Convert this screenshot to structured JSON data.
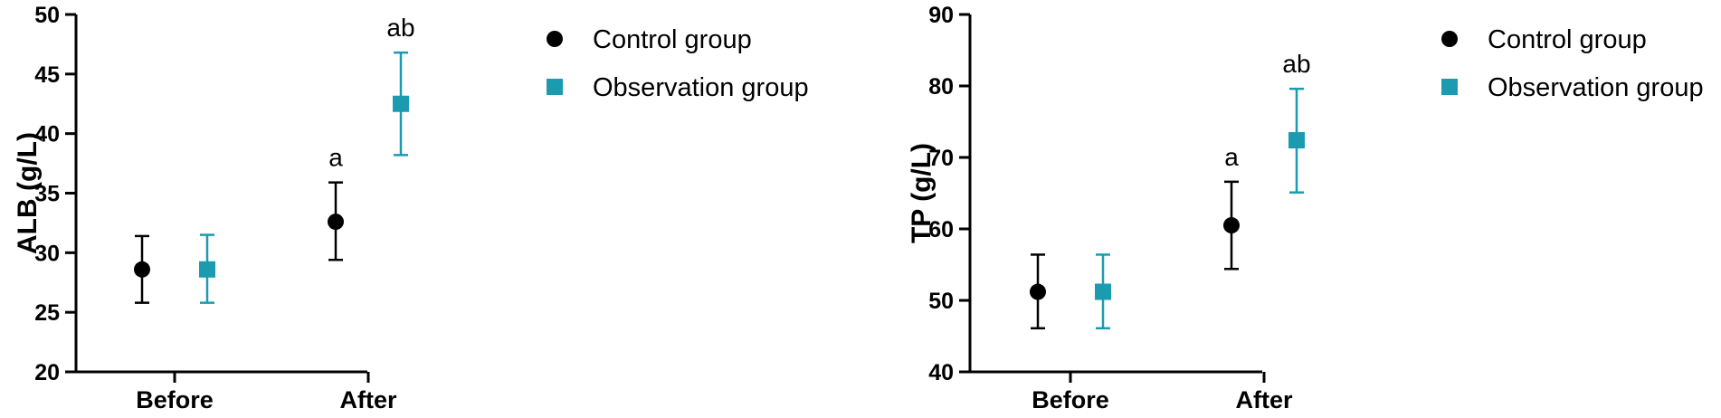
{
  "chart_data": [
    {
      "type": "scatter",
      "ylabel": "ALB (g/L)",
      "categories": [
        "Before",
        "After"
      ],
      "ylim": [
        20,
        50
      ],
      "yticks": [
        20,
        25,
        30,
        35,
        40,
        45,
        50
      ],
      "series": [
        {
          "name": "Control group",
          "marker": "circle",
          "color": "#000000",
          "values": [
            28.6,
            32.6
          ],
          "err_low": [
            25.8,
            29.4
          ],
          "err_high": [
            31.4,
            35.9
          ]
        },
        {
          "name": "Observation group",
          "marker": "square",
          "color": "#1a9bb0",
          "values": [
            28.6,
            42.5
          ],
          "err_low": [
            25.8,
            38.2
          ],
          "err_high": [
            31.5,
            46.8
          ]
        }
      ],
      "annotations": [
        {
          "category": "After",
          "series": "Control group",
          "text": "a"
        },
        {
          "category": "After",
          "series": "Observation group",
          "text": "ab"
        }
      ],
      "legend": "top-right",
      "grid": false
    },
    {
      "type": "scatter",
      "ylabel": "TP (g/L)",
      "categories": [
        "Before",
        "After"
      ],
      "ylim": [
        40,
        90
      ],
      "yticks": [
        40,
        50,
        60,
        70,
        80,
        90
      ],
      "series": [
        {
          "name": "Control group",
          "marker": "circle",
          "color": "#000000",
          "values": [
            51.2,
            60.5
          ],
          "err_low": [
            46.1,
            54.4
          ],
          "err_high": [
            56.4,
            66.6
          ]
        },
        {
          "name": "Observation group",
          "marker": "square",
          "color": "#1a9bb0",
          "values": [
            51.2,
            72.4
          ],
          "err_low": [
            46.1,
            65.1
          ],
          "err_high": [
            56.4,
            79.6
          ]
        }
      ],
      "annotations": [
        {
          "category": "After",
          "series": "Control group",
          "text": "a"
        },
        {
          "category": "After",
          "series": "Observation group",
          "text": "ab"
        }
      ],
      "legend": "top-right",
      "grid": false
    }
  ]
}
